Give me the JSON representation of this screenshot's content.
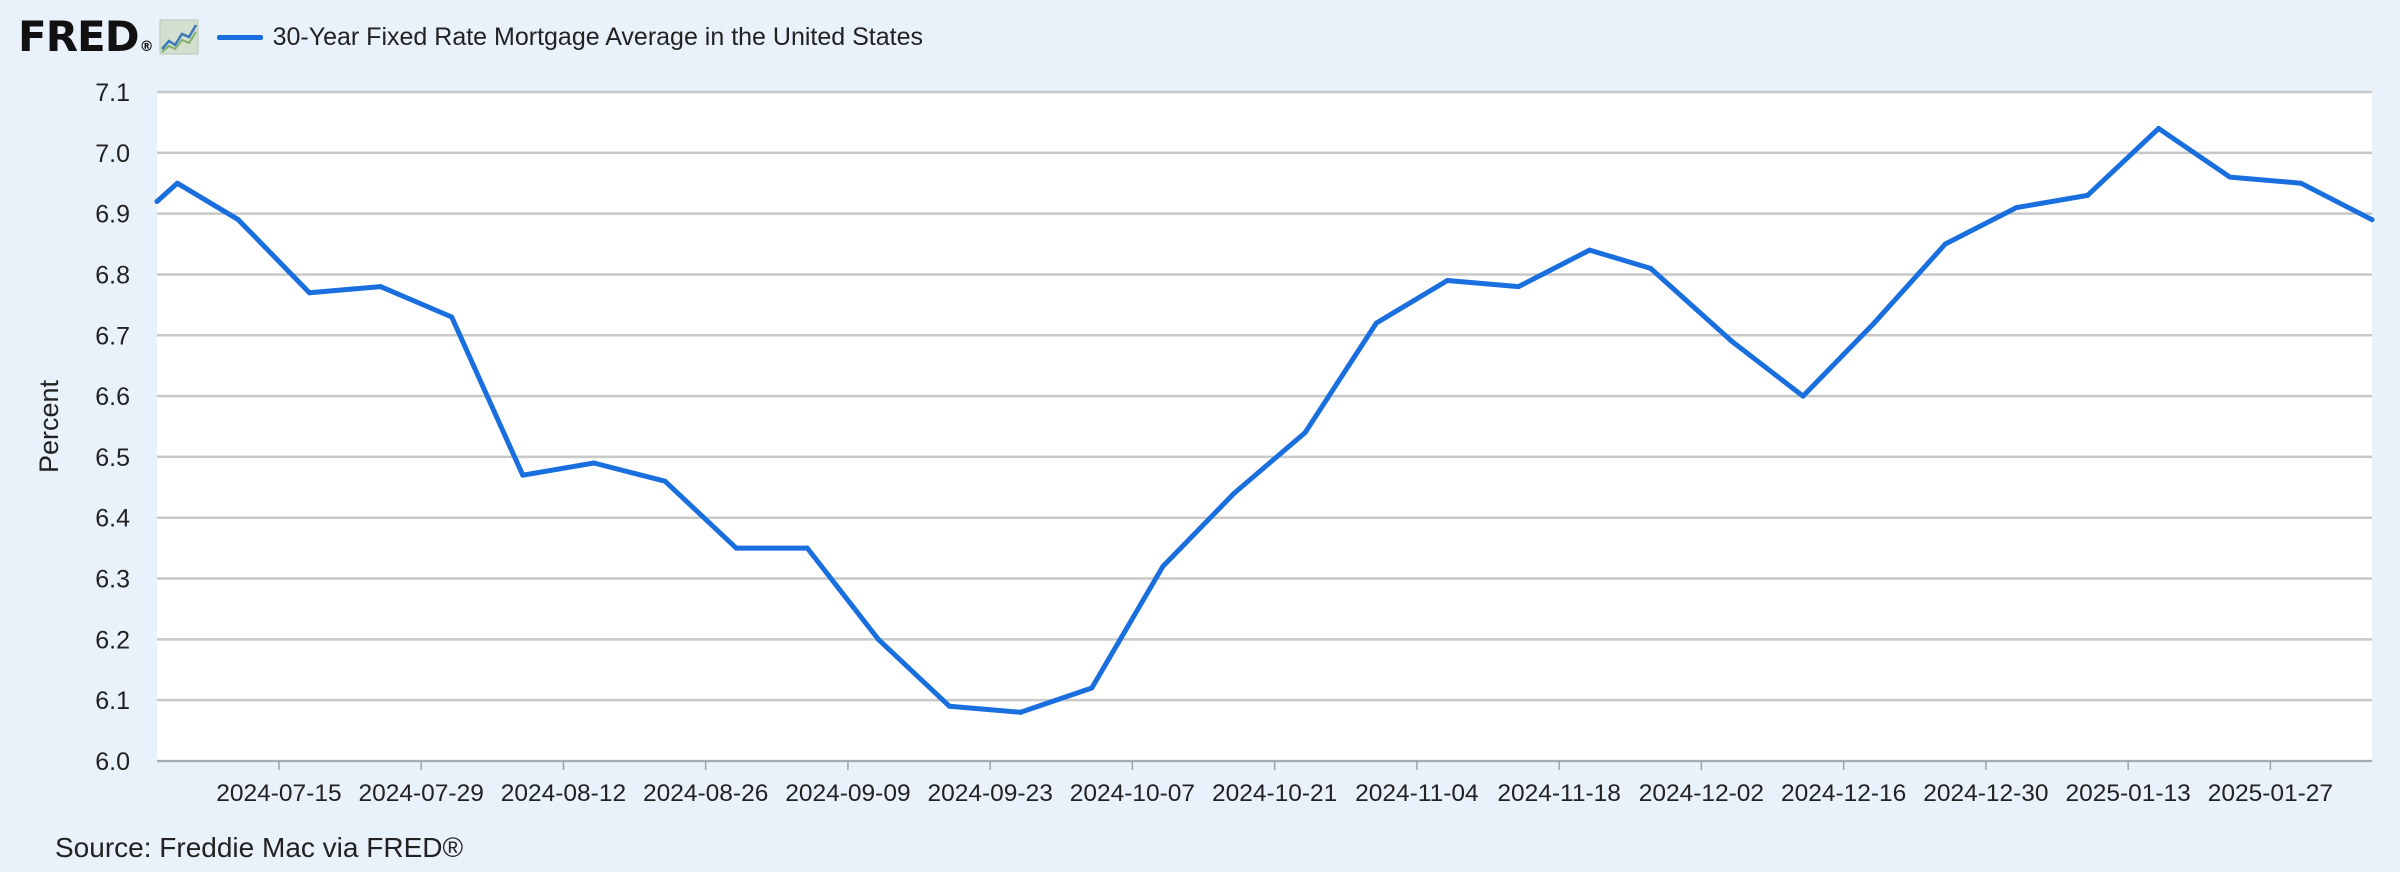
{
  "header": {
    "logo_text": "FRED",
    "logo_mark": "®",
    "logo_icon": "line-chart-icon"
  },
  "source": "Source: Freddie Mac via FRED®",
  "colors": {
    "background": "#e9f1fa",
    "plot_background": "#ffffff",
    "series": "#1a6fdf",
    "grid": "#c8c8c8"
  },
  "chart_data": {
    "type": "line",
    "title": "",
    "xlabel": "",
    "ylabel": "Percent",
    "ylim": [
      6.0,
      7.1
    ],
    "yticks": [
      "6.0",
      "6.1",
      "6.2",
      "6.3",
      "6.4",
      "6.5",
      "6.6",
      "6.7",
      "6.8",
      "6.9",
      "7.0",
      "7.1"
    ],
    "xlim": [
      "2024-07-03",
      "2025-02-06"
    ],
    "xticks": [
      "2024-07-15",
      "2024-07-29",
      "2024-08-12",
      "2024-08-26",
      "2024-09-09",
      "2024-09-23",
      "2024-10-07",
      "2024-10-21",
      "2024-11-04",
      "2024-11-18",
      "2024-12-02",
      "2024-12-16",
      "2024-12-30",
      "2025-01-13",
      "2025-01-27"
    ],
    "grid": true,
    "legend": "top-left",
    "series": [
      {
        "name": "30-Year Fixed Rate Mortgage Average in the United States",
        "x": [
          "2024-07-03",
          "2024-07-05",
          "2024-07-11",
          "2024-07-18",
          "2024-07-25",
          "2024-08-01",
          "2024-08-08",
          "2024-08-15",
          "2024-08-22",
          "2024-08-29",
          "2024-09-05",
          "2024-09-12",
          "2024-09-19",
          "2024-09-26",
          "2024-10-03",
          "2024-10-10",
          "2024-10-17",
          "2024-10-24",
          "2024-10-31",
          "2024-11-07",
          "2024-11-14",
          "2024-11-21",
          "2024-11-27",
          "2024-12-05",
          "2024-12-12",
          "2024-12-19",
          "2024-12-26",
          "2025-01-02",
          "2025-01-09",
          "2025-01-16",
          "2025-01-23",
          "2025-01-30",
          "2025-02-06"
        ],
        "values": [
          6.92,
          6.95,
          6.89,
          6.77,
          6.78,
          6.73,
          6.47,
          6.49,
          6.46,
          6.35,
          6.35,
          6.2,
          6.09,
          6.08,
          6.12,
          6.32,
          6.44,
          6.54,
          6.72,
          6.79,
          6.78,
          6.84,
          6.81,
          6.69,
          6.6,
          6.72,
          6.85,
          6.91,
          6.93,
          7.04,
          6.96,
          6.95,
          6.89
        ]
      }
    ]
  }
}
